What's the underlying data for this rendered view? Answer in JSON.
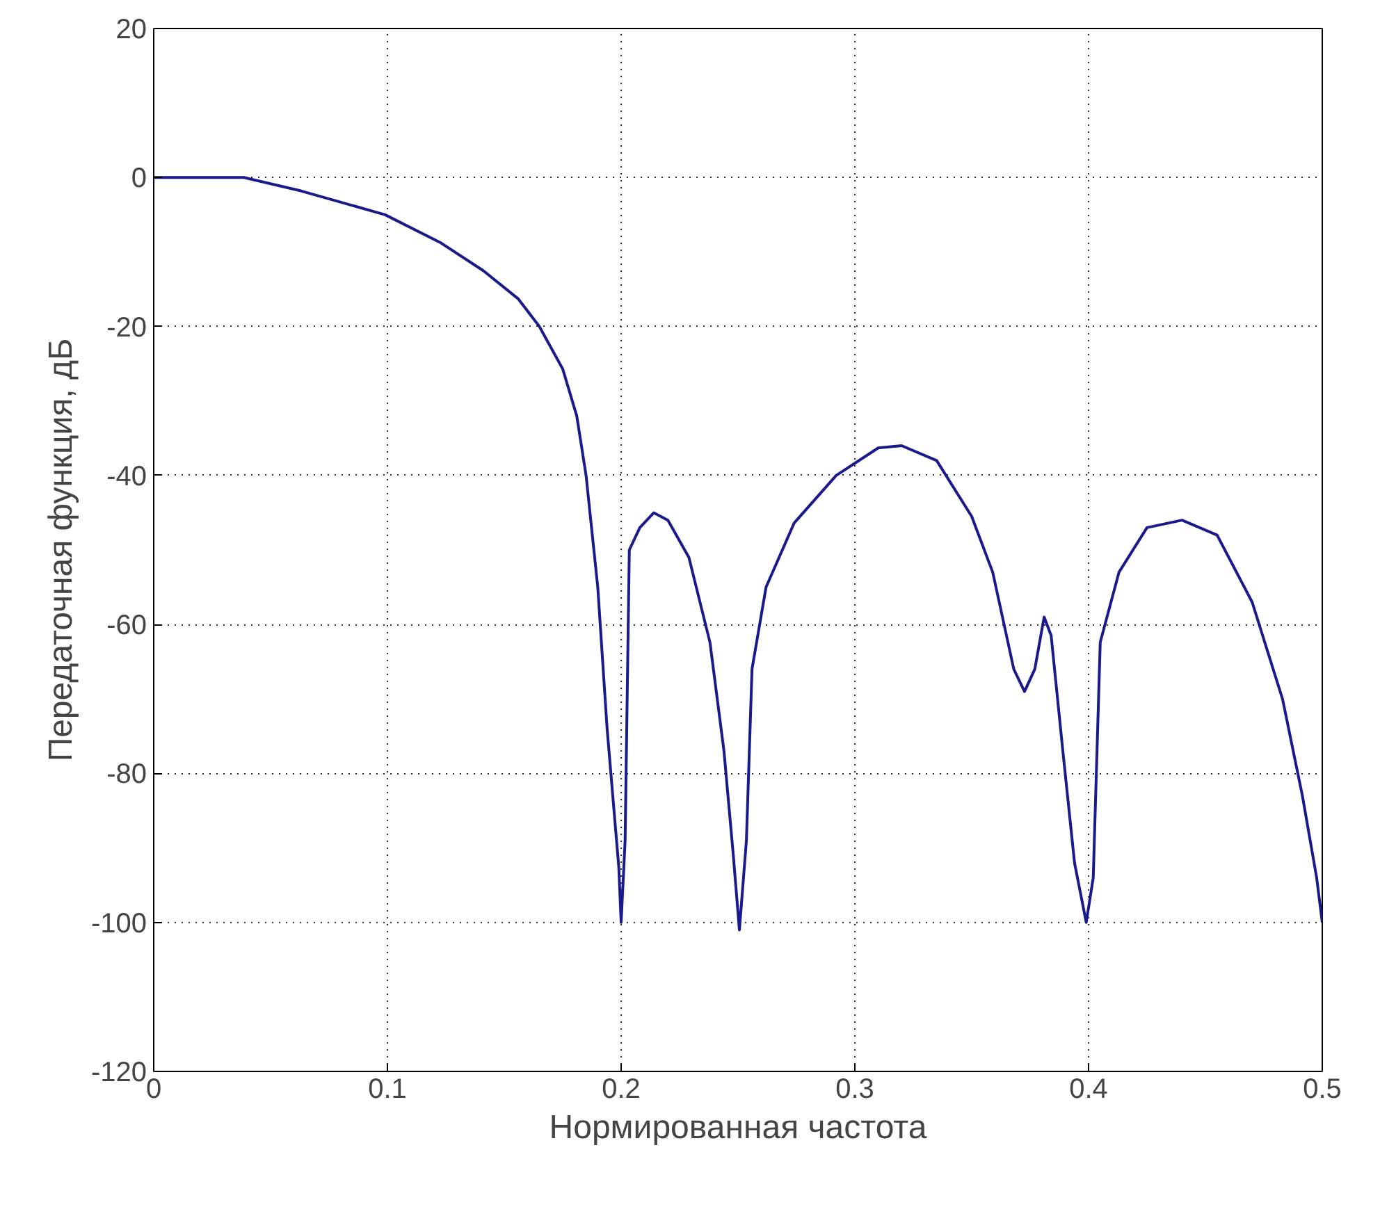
{
  "chart_data": {
    "type": "line",
    "xlabel": "Нормированная частота",
    "ylabel": "Передаточная функция, дБ",
    "xlim": [
      0,
      0.5
    ],
    "ylim": [
      -120,
      20
    ],
    "xticks": [
      0,
      0.1,
      0.2,
      0.3,
      0.4,
      0.5
    ],
    "yticks": [
      -120,
      -100,
      -80,
      -60,
      -40,
      -20,
      0,
      20
    ],
    "grid": true,
    "line_style": "solid",
    "marker": "none",
    "series": [
      {
        "color": "#1a1a8c",
        "x": [
          0,
          0.0386,
          0.063,
          0.099,
          0.123,
          0.141,
          0.156,
          0.165,
          0.175,
          0.181,
          0.185,
          0.19,
          0.194,
          0.199,
          0.2,
          0.2017,
          0.2035,
          0.208,
          0.214,
          0.22,
          0.229,
          0.238,
          0.244,
          0.248,
          0.2506,
          0.2536,
          0.256,
          0.262,
          0.274,
          0.292,
          0.31,
          0.32,
          0.335,
          0.35,
          0.359,
          0.368,
          0.3726,
          0.377,
          0.381,
          0.384,
          0.389,
          0.394,
          0.399,
          0.402,
          0.405,
          0.413,
          0.425,
          0.44,
          0.455,
          0.47,
          0.483,
          0.4915,
          0.4976,
          0.5
        ],
        "values": [
          0,
          0,
          -1.8,
          -5,
          -8.8,
          -12.5,
          -16.3,
          -20,
          -25.7,
          -32,
          -40,
          -55,
          -74,
          -92.6,
          -100,
          -89,
          -50,
          -47,
          -45,
          -46,
          -51,
          -62.4,
          -77,
          -91,
          -101,
          -89,
          -66,
          -55,
          -46.4,
          -40,
          -36.3,
          -36,
          -38,
          -45.5,
          -53,
          -66,
          -69,
          -66,
          -59,
          -61.5,
          -77,
          -92,
          -100,
          -94,
          -62.4,
          -53,
          -47,
          -46,
          -48,
          -57,
          -70,
          -83,
          -94,
          -100
        ]
      }
    ]
  }
}
